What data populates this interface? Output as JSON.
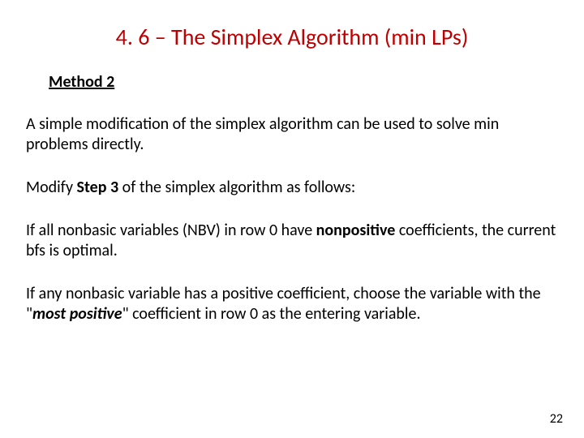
{
  "title": "4. 6 – The Simplex Algorithm (min LPs)",
  "subheading": "Method 2",
  "para1": "A simple modification of the simplex algorithm can be used to solve min problems directly.",
  "para2_pre": "Modify ",
  "para2_bold": "Step 3",
  "para2_post": " of the simplex algorithm as follows:",
  "para3_pre": "If all nonbasic variables (NBV) in row 0 have ",
  "para3_bold": "nonpositive",
  "para3_post": " coefficients, the current bfs is optimal.",
  "para4_pre": "If any nonbasic variable has a positive coefficient, choose the variable with the \"",
  "para4_bold": "most positive",
  "para4_post": "\" coefficient in row 0 as the entering variable.",
  "page_number": "22",
  "colors": {
    "title_color": "#c00000",
    "text_color": "#000000",
    "background": "#ffffff"
  },
  "typography": {
    "title_fontsize": 28,
    "subheading_fontsize": 20,
    "body_fontsize": 20,
    "pagenum_fontsize": 16,
    "font_family": "Calibri"
  }
}
